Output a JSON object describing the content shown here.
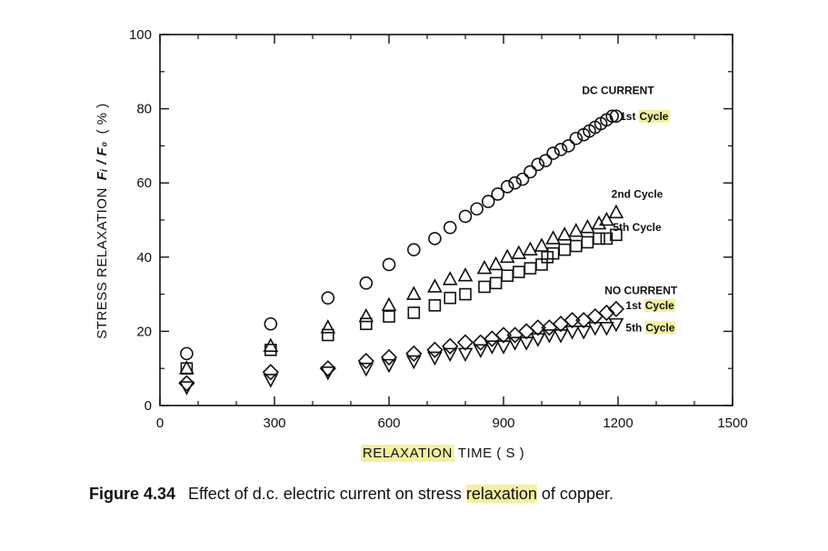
{
  "caption": {
    "figure_number": "Figure 4.34",
    "text_before": "Effect of d.c. electric current on stress",
    "highlight": "relaxation",
    "text_after": "of copper."
  },
  "highlight_color": "#f3f0a0",
  "chart_data": {
    "type": "scatter",
    "title": "",
    "xlabel": "RELAXATION TIME ( S )",
    "xlabel_highlight": "RELAXATION",
    "xlabel_rest": "TIME ( S )",
    "ylabel": "STRESS RELAXATION Fᵢ / F₀ ( % )",
    "ylabel_main": "STRESS RELAXATION",
    "ylabel_ratio": "Fᵢ / F₀",
    "ylabel_unit": "( % )",
    "xlim": [
      0,
      1500
    ],
    "ylim": [
      0,
      100
    ],
    "xticks": [
      0,
      300,
      600,
      900,
      1200,
      1500
    ],
    "yticks": [
      0,
      20,
      40,
      60,
      80,
      100
    ],
    "xticks_minor": [
      100,
      200,
      400,
      500,
      700,
      800,
      1000,
      1100,
      1300,
      1400
    ],
    "yticks_minor": [
      10,
      30,
      50,
      70,
      90
    ],
    "grid": false,
    "series": [
      {
        "name": "DC CURRENT 1st Cycle",
        "marker": "circle",
        "x": [
          70,
          290,
          440,
          540,
          600,
          665,
          720,
          760,
          800,
          830,
          860,
          885,
          910,
          930,
          950,
          970,
          990,
          1010,
          1030,
          1050,
          1070,
          1090,
          1110,
          1125,
          1140,
          1155,
          1170,
          1185,
          1195
        ],
        "y": [
          14,
          22,
          29,
          33,
          38,
          42,
          45,
          48,
          51,
          53,
          55,
          57,
          59,
          60,
          61,
          63,
          65,
          66,
          68,
          69,
          70,
          72,
          73,
          74,
          75,
          76,
          77,
          78,
          78
        ]
      },
      {
        "name": "DC CURRENT 2nd Cycle",
        "marker": "triangle-up",
        "x": [
          70,
          290,
          440,
          540,
          600,
          665,
          720,
          760,
          800,
          850,
          880,
          910,
          940,
          970,
          1000,
          1030,
          1060,
          1090,
          1120,
          1150,
          1170,
          1195
        ],
        "y": [
          10,
          16,
          21,
          24,
          27,
          30,
          32,
          34,
          35,
          37,
          38,
          40,
          41,
          42,
          43,
          45,
          46,
          47,
          48,
          49,
          50,
          52
        ]
      },
      {
        "name": "DC CURRENT 5th Cycle",
        "marker": "square",
        "x": [
          70,
          290,
          440,
          540,
          600,
          665,
          720,
          760,
          800,
          850,
          880,
          910,
          940,
          970,
          1000,
          1015,
          1030,
          1060,
          1090,
          1120,
          1150,
          1170,
          1195
        ],
        "y": [
          10,
          15,
          19,
          22,
          24,
          25,
          27,
          29,
          30,
          32,
          33,
          35,
          36,
          37,
          38,
          40,
          41,
          42,
          43,
          44,
          45,
          45,
          46
        ]
      },
      {
        "name": "NO CURRENT 1st Cycle",
        "marker": "diamond",
        "x": [
          70,
          290,
          440,
          540,
          600,
          665,
          720,
          760,
          800,
          840,
          870,
          900,
          930,
          960,
          990,
          1020,
          1050,
          1080,
          1110,
          1140,
          1170,
          1195
        ],
        "y": [
          6,
          9,
          10,
          12,
          13,
          14,
          15,
          16,
          17,
          17,
          18,
          19,
          19,
          20,
          21,
          21,
          22,
          23,
          23,
          24,
          25,
          26
        ]
      },
      {
        "name": "NO CURRENT 5th Cycle",
        "marker": "triangle-down",
        "x": [
          70,
          290,
          440,
          540,
          600,
          665,
          720,
          760,
          800,
          840,
          870,
          900,
          930,
          960,
          990,
          1020,
          1050,
          1080,
          1110,
          1140,
          1170,
          1195
        ],
        "y": [
          5,
          7,
          9,
          10,
          11,
          12,
          13,
          14,
          14,
          15,
          16,
          16,
          17,
          17,
          18,
          19,
          19,
          20,
          20,
          21,
          21,
          22
        ]
      }
    ],
    "annotations": [
      {
        "text": "DC CURRENT",
        "highlight": "",
        "x": 1200,
        "y": 84,
        "anchor": "middle"
      },
      {
        "text": "1st",
        "highlight": "Cycle",
        "x": 1205,
        "y": 77,
        "anchor": "start"
      },
      {
        "text": "2nd Cycle",
        "highlight": "",
        "x": 1250,
        "y": 56,
        "anchor": "middle"
      },
      {
        "text": "5th Cycle",
        "highlight": "",
        "x": 1250,
        "y": 47,
        "anchor": "middle"
      },
      {
        "text": "NO CURRENT",
        "highlight": "",
        "x": 1260,
        "y": 30,
        "anchor": "middle"
      },
      {
        "text": "1st",
        "highlight": "Cycle",
        "x": 1220,
        "y": 26,
        "anchor": "start"
      },
      {
        "text": "5th",
        "highlight": "Cycle",
        "x": 1220,
        "y": 20,
        "anchor": "start"
      }
    ]
  }
}
